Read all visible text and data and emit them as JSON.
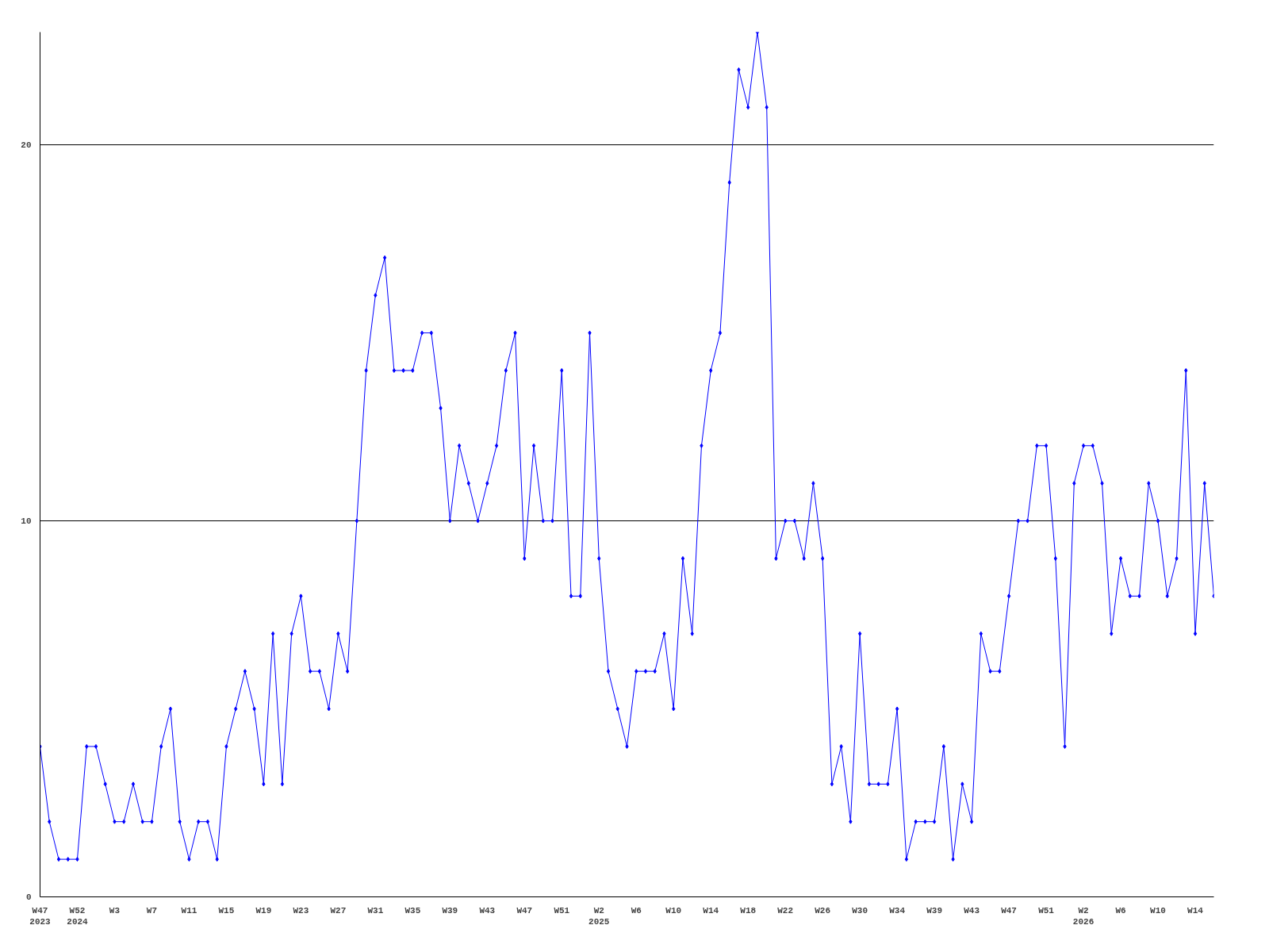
{
  "chart_data": {
    "type": "line",
    "categories": [
      "W47\n2023",
      null,
      null,
      null,
      "W52\n2024",
      null,
      null,
      null,
      "W3",
      null,
      null,
      null,
      "W7",
      null,
      null,
      null,
      "W11",
      null,
      null,
      null,
      "W15",
      null,
      null,
      null,
      "W19",
      null,
      null,
      null,
      "W23",
      null,
      null,
      null,
      "W27",
      null,
      null,
      null,
      "W31",
      null,
      null,
      null,
      "W35",
      null,
      null,
      null,
      "W39",
      null,
      null,
      null,
      "W43",
      null,
      null,
      null,
      "W47",
      null,
      null,
      null,
      "W51",
      null,
      null,
      null,
      "W2\n2025",
      null,
      null,
      null,
      "W6",
      null,
      null,
      null,
      "W10",
      null,
      null,
      null,
      "W14",
      null,
      null,
      null,
      "W18",
      null,
      null,
      null,
      "W22",
      null,
      null,
      null,
      "W26",
      null,
      null,
      null,
      "W30",
      null,
      null,
      null,
      "W34",
      null,
      null,
      null,
      "W39",
      null,
      null,
      null,
      "W43",
      null,
      null,
      null,
      "W47",
      null,
      null,
      null,
      "W51",
      null,
      null,
      null,
      "W2\n2026",
      null,
      null,
      null,
      "W6",
      null,
      null,
      null,
      "W10",
      null,
      null,
      null,
      "W14",
      null,
      null
    ],
    "series": [
      {
        "color": "#0000ff",
        "values": [
          4,
          2,
          1,
          1,
          1,
          4,
          4,
          3,
          2,
          2,
          3,
          2,
          2,
          4,
          5,
          2,
          1,
          2,
          2,
          1,
          4,
          5,
          6,
          5,
          3,
          7,
          3,
          7,
          8,
          6,
          6,
          5,
          7,
          6,
          10,
          14,
          16,
          17,
          14,
          14,
          14,
          15,
          15,
          13,
          10,
          12,
          11,
          10,
          11,
          12,
          14,
          15,
          9,
          12,
          10,
          10,
          14,
          8,
          8,
          15,
          9,
          6,
          5,
          4,
          6,
          6,
          6,
          7,
          5,
          9,
          7,
          12,
          14,
          15,
          19,
          22,
          21,
          23,
          21,
          9,
          10,
          10,
          9,
          11,
          9,
          3,
          4,
          2,
          7,
          3,
          3,
          3,
          5,
          1,
          2,
          2,
          2,
          4,
          1,
          3,
          2,
          7,
          6,
          6,
          8,
          10,
          10,
          12,
          12,
          9,
          4,
          11,
          12,
          12,
          11,
          7,
          9,
          8,
          8,
          11,
          10,
          8,
          9,
          14,
          7,
          11,
          8
        ]
      }
    ],
    "ylim": [
      0,
      23
    ],
    "yticks": [
      0,
      10,
      20
    ],
    "grid": "y",
    "marker": "diamond",
    "line_style": "solid"
  }
}
